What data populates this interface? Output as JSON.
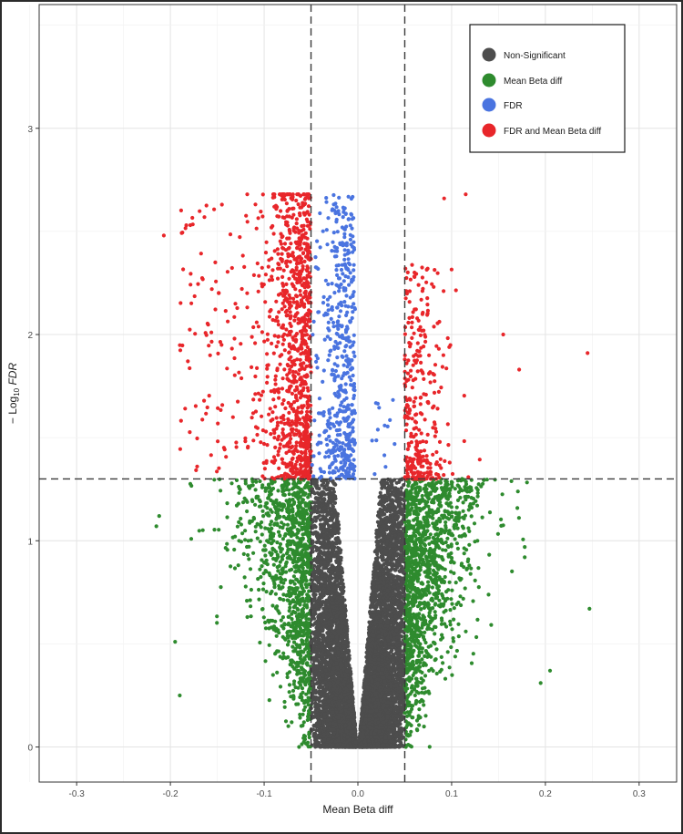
{
  "chart_data": {
    "type": "scatter",
    "title": "",
    "xlabel": "Mean Beta diff",
    "ylabel_prefix": "− Log",
    "ylabel_sub": "10",
    "ylabel_italic": " FDR",
    "xlim": [
      -0.34,
      0.34
    ],
    "ylim": [
      -0.17,
      3.6
    ],
    "x_ticks": [
      -0.3,
      -0.2,
      -0.1,
      0.0,
      0.1,
      0.2,
      0.3
    ],
    "x_tick_labels": [
      "-0.3",
      "-0.2",
      "-0.1",
      "0.0",
      "0.1",
      "0.2",
      "0.3"
    ],
    "y_ticks": [
      0,
      1,
      2,
      3
    ],
    "y_tick_labels": [
      "0",
      "1",
      "2",
      "3"
    ],
    "grid": true,
    "threshold_lines": {
      "x": [
        -0.05,
        0.05
      ],
      "y": 1.3
    },
    "legend_position": "top-right",
    "series": [
      {
        "name": "Non-Significant",
        "color": "#4d4d4d",
        "rule": "|x| < 0.05 and y < 1.3"
      },
      {
        "name": "Mean Beta diff",
        "color": "#2e8b2e",
        "rule": "|x| >= 0.05 and y < 1.3"
      },
      {
        "name": "FDR",
        "color": "#4a74e0",
        "rule": "|x| < 0.05 and y >= 1.3"
      },
      {
        "name": "FDR and Mean Beta diff",
        "color": "#e8262a",
        "rule": "|x| >= 0.05 and y >= 1.3"
      }
    ],
    "notable_points": [
      {
        "x": 0.245,
        "y": 1.91
      },
      {
        "x": 0.172,
        "y": 1.83
      },
      {
        "x": 0.155,
        "y": 2.0
      },
      {
        "x": 0.115,
        "y": 2.68
      },
      {
        "x": 0.092,
        "y": 2.66
      },
      {
        "x": -0.207,
        "y": 2.48
      },
      {
        "x": -0.183,
        "y": 2.53
      },
      {
        "x": -0.145,
        "y": 2.63
      },
      {
        "x": -0.118,
        "y": 2.68
      },
      {
        "x": -0.212,
        "y": 1.12
      },
      {
        "x": -0.215,
        "y": 1.07
      },
      {
        "x": -0.195,
        "y": 0.51
      },
      {
        "x": -0.19,
        "y": 0.25
      },
      {
        "x": 0.247,
        "y": 0.67
      },
      {
        "x": 0.205,
        "y": 0.37
      },
      {
        "x": 0.195,
        "y": 0.31
      },
      {
        "x": 0.178,
        "y": 0.97
      },
      {
        "x": 0.178,
        "y": 0.92
      }
    ]
  }
}
